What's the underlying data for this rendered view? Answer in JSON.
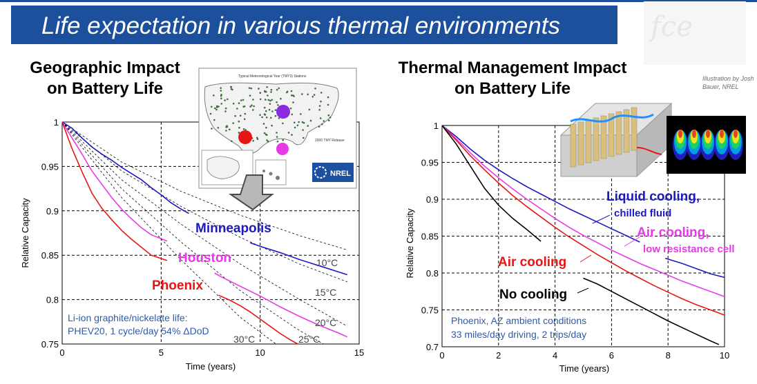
{
  "slide": {
    "title": "Life expectation in various thermal environments",
    "logo_text": "fce"
  },
  "left_panel": {
    "title_line1": "Geographic Impact",
    "title_line2": "on Battery Life",
    "map_title": "Typical Meteorological Year (TMY3) Stations",
    "map_legend_title": "2000 TMY Release",
    "map_logo": "NREL"
  },
  "right_panel": {
    "title_line1": "Thermal Management Impact",
    "title_line2": "on Battery Life",
    "credit_line1": "Illustration by Josh",
    "credit_line2": "Bauer, NREL"
  },
  "colors": {
    "banner": "#1c4f9c",
    "minneapolis": "#1a1ac0",
    "houston": "#e838e8",
    "phoenix": "#e81414",
    "no_cooling": "#000000",
    "notes": "#2e5aa8"
  },
  "chart_data": [
    {
      "type": "line",
      "xlabel": "Time (years)",
      "ylabel": "Relative Capacity",
      "xlim": [
        0,
        15
      ],
      "ylim": [
        0.75,
        1
      ],
      "xticks": [
        "0",
        "5",
        "10",
        "15"
      ],
      "yticks": [
        "0.75",
        "0.8",
        "0.85",
        "0.9",
        "0.95",
        "1"
      ],
      "grid": "dashed",
      "notes": [
        "Li-ion graphite/nickelate life:",
        "PHEV20, 1 cycle/day 54% ΔDoD"
      ],
      "series": [
        {
          "name": "Minneapolis",
          "color": "#1a1ac0",
          "segments": [
            [
              [
                0,
                1
              ],
              [
                0.5,
                0.993
              ],
              [
                1,
                0.982
              ],
              [
                1.5,
                0.972
              ],
              [
                2,
                0.964
              ],
              [
                2.5,
                0.957
              ],
              [
                3,
                0.949
              ],
              [
                3.5,
                0.942
              ],
              [
                4,
                0.935
              ],
              [
                4.5,
                0.926
              ],
              [
                5,
                0.918
              ],
              [
                5.5,
                0.909
              ],
              [
                6,
                0.902
              ],
              [
                6.4,
                0.897
              ]
            ],
            [
              [
                9.5,
                0.864
              ],
              [
                10,
                0.86
              ],
              [
                11,
                0.853
              ],
              [
                12,
                0.845
              ],
              [
                13,
                0.838
              ],
              [
                14.4,
                0.828
              ]
            ]
          ]
        },
        {
          "name": "Houston",
          "color": "#e838e8",
          "segments": [
            [
              [
                0,
                1
              ],
              [
                0.5,
                0.982
              ],
              [
                1,
                0.964
              ],
              [
                1.5,
                0.945
              ],
              [
                2,
                0.93
              ],
              [
                2.5,
                0.915
              ],
              [
                3,
                0.902
              ],
              [
                3.5,
                0.891
              ],
              [
                4,
                0.881
              ],
              [
                4.5,
                0.873
              ],
              [
                5.3,
                0.866
              ]
            ],
            [
              [
                7.7,
                0.83
              ],
              [
                8,
                0.826
              ],
              [
                9,
                0.815
              ],
              [
                10,
                0.804
              ],
              [
                11,
                0.792
              ],
              [
                12,
                0.781
              ],
              [
                13,
                0.771
              ],
              [
                14,
                0.762
              ],
              [
                14.4,
                0.758
              ]
            ]
          ]
        },
        {
          "name": "Phoenix",
          "color": "#e81414",
          "segments": [
            [
              [
                0,
                1
              ],
              [
                0.5,
                0.97
              ],
              [
                1,
                0.944
              ],
              [
                1.5,
                0.92
              ],
              [
                2,
                0.903
              ],
              [
                2.5,
                0.89
              ],
              [
                3,
                0.878
              ],
              [
                3.5,
                0.868
              ],
              [
                4,
                0.859
              ],
              [
                4.5,
                0.85
              ],
              [
                5.3,
                0.844
              ]
            ],
            [
              [
                7.9,
                0.805
              ],
              [
                8.5,
                0.799
              ],
              [
                9,
                0.793
              ],
              [
                9.5,
                0.786
              ],
              [
                10,
                0.778
              ],
              [
                10.5,
                0.77
              ],
              [
                11,
                0.762
              ],
              [
                11.5,
                0.755
              ],
              [
                11.9,
                0.75
              ]
            ]
          ]
        }
      ],
      "isotherms": [
        {
          "label": "10°C",
          "points": [
            [
              0,
              1
            ],
            [
              3,
              0.955
            ],
            [
              6,
              0.922
            ],
            [
              9,
              0.895
            ],
            [
              12,
              0.872
            ],
            [
              14.4,
              0.856
            ]
          ]
        },
        {
          "label": "15°C",
          "points": [
            [
              0,
              1
            ],
            [
              3,
              0.945
            ],
            [
              6,
              0.905
            ],
            [
              9,
              0.87
            ],
            [
              12,
              0.84
            ],
            [
              14.4,
              0.82
            ]
          ]
        },
        {
          "label": "20°C",
          "points": [
            [
              0,
              1
            ],
            [
              3,
              0.935
            ],
            [
              6,
              0.885
            ],
            [
              9,
              0.84
            ],
            [
              12,
              0.8
            ],
            [
              14.4,
              0.77
            ]
          ]
        },
        {
          "label": "25°C",
          "points": [
            [
              0,
              1
            ],
            [
              3,
              0.925
            ],
            [
              6,
              0.865
            ],
            [
              9,
              0.81
            ],
            [
              12,
              0.765
            ],
            [
              13.2,
              0.75
            ]
          ]
        },
        {
          "label": "30°C",
          "points": [
            [
              0,
              1
            ],
            [
              3,
              0.915
            ],
            [
              6,
              0.845
            ],
            [
              9,
              0.78
            ],
            [
              10.8,
              0.75
            ]
          ]
        }
      ]
    },
    {
      "type": "line",
      "xlabel": "Time (years)",
      "ylabel": "Relative Capacity",
      "xlim": [
        0,
        10
      ],
      "ylim": [
        0.7,
        1
      ],
      "xticks": [
        "0",
        "2",
        "4",
        "6",
        "8",
        "10"
      ],
      "yticks": [
        "0.7",
        "0.75",
        "0.8",
        "0.85",
        "0.9",
        "0.95",
        "1"
      ],
      "grid": "dashed",
      "notes": [
        "Phoenix, AZ ambient conditions",
        "33 miles/day driving, 2 trips/day"
      ],
      "series": [
        {
          "name": "Liquid cooling,",
          "sub": "chilled fluid",
          "color": "#1a1ac0",
          "segments": [
            [
              [
                0,
                1
              ],
              [
                0.5,
                0.985
              ],
              [
                1,
                0.968
              ],
              [
                1.5,
                0.953
              ],
              [
                2,
                0.94
              ],
              [
                2.5,
                0.928
              ],
              [
                3,
                0.917
              ],
              [
                3.5,
                0.907
              ],
              [
                4,
                0.897
              ],
              [
                4.5,
                0.887
              ],
              [
                5,
                0.878
              ],
              [
                5.5,
                0.869
              ],
              [
                6,
                0.86
              ],
              [
                6.5,
                0.851
              ],
              [
                7,
                0.842
              ]
            ],
            [
              [
                7.9,
                0.82
              ],
              [
                8.5,
                0.813
              ],
              [
                9,
                0.806
              ],
              [
                9.5,
                0.799
              ],
              [
                10,
                0.794
              ]
            ]
          ]
        },
        {
          "name": "Air cooling,",
          "sub": "low resistance cell",
          "color": "#e838e8",
          "segments": [
            [
              [
                0,
                1
              ],
              [
                0.5,
                0.982
              ],
              [
                1,
                0.963
              ],
              [
                1.5,
                0.945
              ],
              [
                2,
                0.929
              ],
              [
                2.5,
                0.914
              ],
              [
                3,
                0.9
              ],
              [
                3.5,
                0.887
              ],
              [
                4,
                0.874
              ],
              [
                4.5,
                0.862
              ],
              [
                5,
                0.851
              ],
              [
                5.5,
                0.841
              ],
              [
                6,
                0.831
              ],
              [
                6.5,
                0.822
              ],
              [
                7,
                0.813
              ],
              [
                7.5,
                0.805
              ],
              [
                8,
                0.797
              ],
              [
                8.5,
                0.789
              ],
              [
                9,
                0.782
              ],
              [
                9.5,
                0.775
              ],
              [
                10,
                0.768
              ]
            ]
          ]
        },
        {
          "name": "Air cooling",
          "sub": "",
          "color": "#e81414",
          "segments": [
            [
              [
                0,
                1
              ],
              [
                0.5,
                0.98
              ],
              [
                1,
                0.959
              ],
              [
                1.5,
                0.94
              ],
              [
                2,
                0.922
              ],
              [
                2.5,
                0.905
              ],
              [
                3,
                0.89
              ],
              [
                3.5,
                0.876
              ],
              [
                4,
                0.862
              ],
              [
                4.5,
                0.849
              ],
              [
                5,
                0.837
              ],
              [
                5.5,
                0.825
              ],
              [
                6,
                0.814
              ],
              [
                6.5,
                0.803
              ],
              [
                7,
                0.793
              ],
              [
                7.5,
                0.783
              ],
              [
                8,
                0.774
              ],
              [
                8.5,
                0.765
              ],
              [
                9,
                0.757
              ],
              [
                9.5,
                0.75
              ],
              [
                10,
                0.743
              ]
            ]
          ]
        },
        {
          "name": "No cooling",
          "sub": "",
          "color": "#000000",
          "segments": [
            [
              [
                0,
                1
              ],
              [
                0.5,
                0.975
              ],
              [
                1,
                0.945
              ],
              [
                1.5,
                0.915
              ],
              [
                2,
                0.892
              ],
              [
                2.5,
                0.874
              ],
              [
                3,
                0.859
              ],
              [
                3.5,
                0.843
              ]
            ],
            [
              [
                5,
                0.793
              ],
              [
                5.5,
                0.785
              ],
              [
                6,
                0.775
              ],
              [
                6.5,
                0.765
              ],
              [
                7,
                0.755
              ],
              [
                7.5,
                0.745
              ],
              [
                8,
                0.735
              ],
              [
                8.5,
                0.726
              ],
              [
                9,
                0.717
              ],
              [
                9.5,
                0.708
              ],
              [
                9.8,
                0.703
              ]
            ]
          ]
        }
      ]
    }
  ]
}
